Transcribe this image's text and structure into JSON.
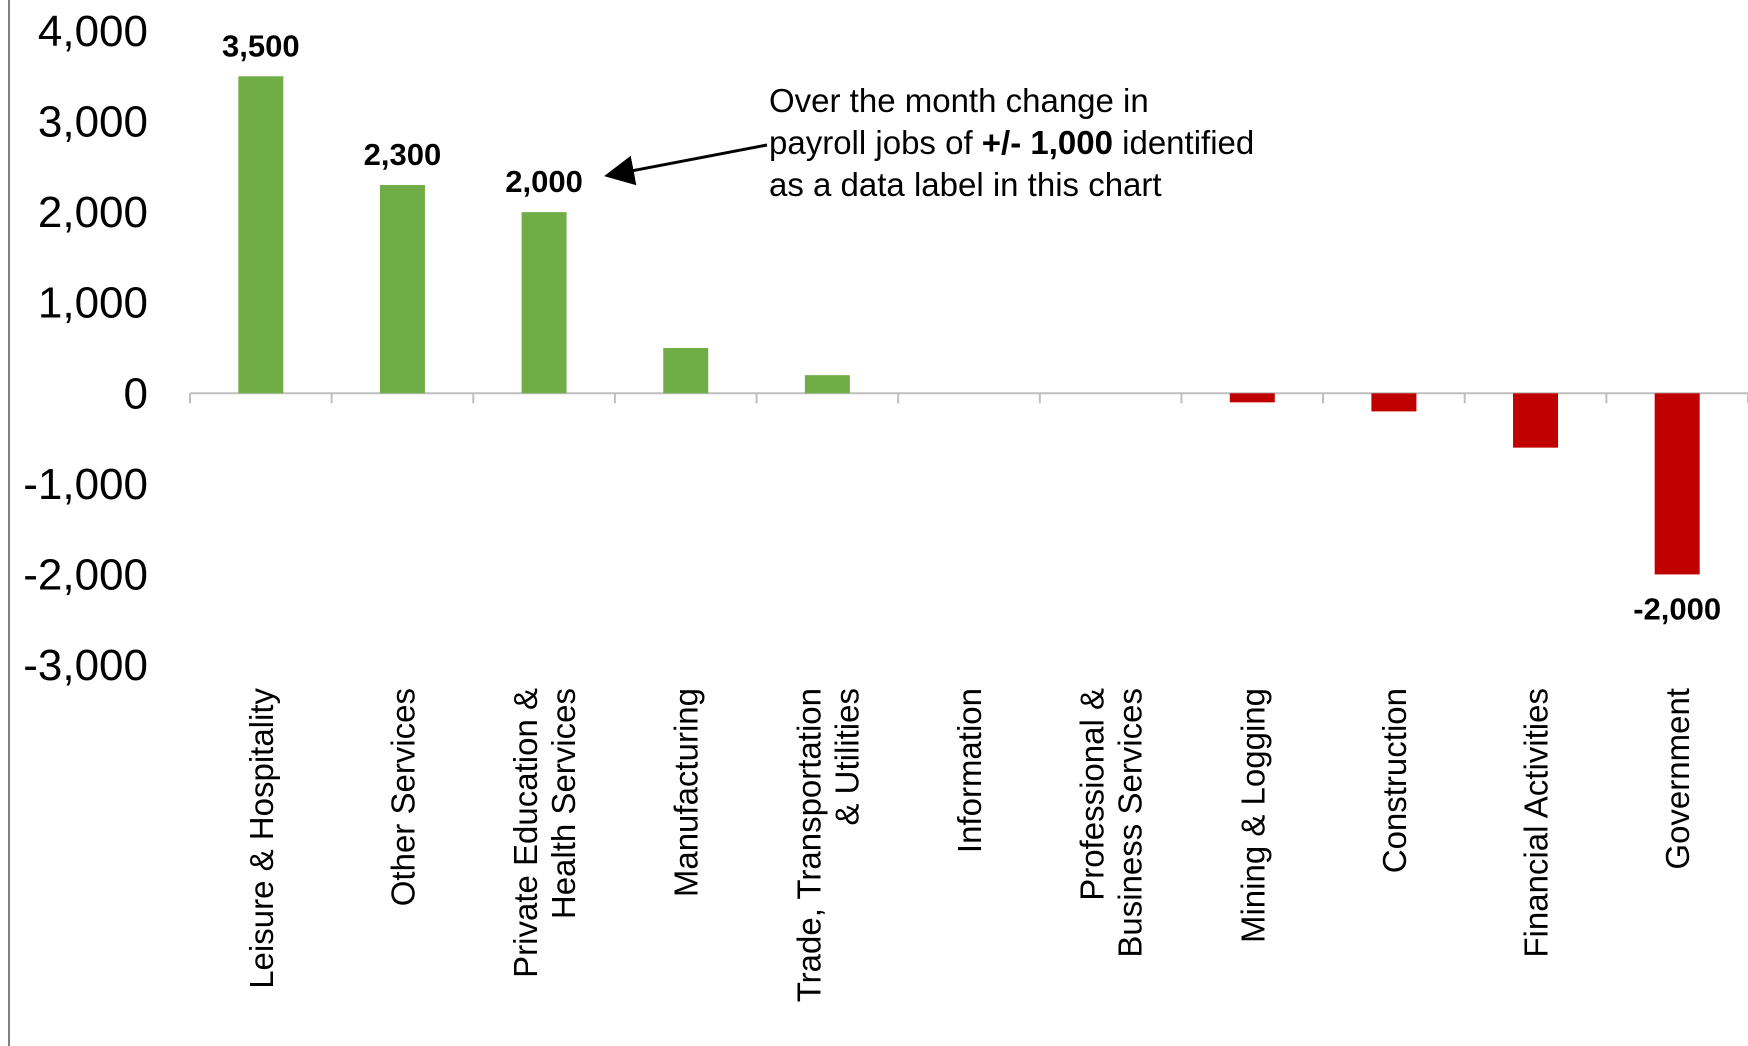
{
  "chart_data": {
    "type": "bar",
    "categories": [
      [
        "Leisure & Hospitality"
      ],
      [
        "Other Services"
      ],
      [
        "Private Education &",
        "Health Services"
      ],
      [
        "Manufacturing"
      ],
      [
        "Trade, Transportation",
        "& Utilities"
      ],
      [
        "Information"
      ],
      [
        "Professional &",
        "Business Services"
      ],
      [
        "Mining & Logging"
      ],
      [
        "Construction"
      ],
      [
        "Financial Activities"
      ],
      [
        "Government"
      ]
    ],
    "values": [
      3500,
      2300,
      2000,
      500,
      200,
      0,
      0,
      -100,
      -200,
      -600,
      -2000
    ],
    "value_labels": [
      "3,500",
      "2,300",
      "2,000",
      null,
      null,
      null,
      null,
      null,
      null,
      null,
      "-2,000"
    ],
    "positive_color": "#70ad47",
    "negative_color": "#c00000",
    "ylim": [
      -3000,
      4000
    ],
    "yticks": [
      {
        "value": -3000,
        "label": "-3,000"
      },
      {
        "value": -2000,
        "label": "-2,000"
      },
      {
        "value": -1000,
        "label": "-1,000"
      },
      0,
      {
        "value": 1000,
        "label": "1,000"
      },
      {
        "value": 2000,
        "label": "2,000"
      },
      {
        "value": 3000,
        "label": "3,000"
      },
      {
        "value": 4000,
        "label": "4,000"
      }
    ],
    "grid": false,
    "annotation": [
      [
        {
          "text": "Over the month change in",
          "bold": false
        }
      ],
      [
        {
          "text": "payroll jobs of ",
          "bold": false
        },
        {
          "text": "+/- 1,000",
          "bold": true
        },
        {
          "text": " identified",
          "bold": false
        }
      ],
      [
        {
          "text": "as a data label in this chart",
          "bold": false
        }
      ]
    ]
  }
}
